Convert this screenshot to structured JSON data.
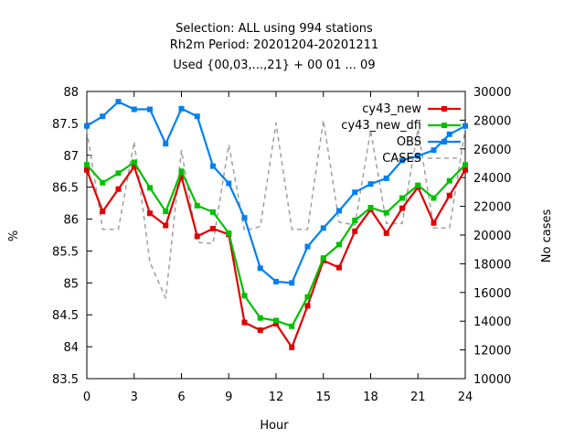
{
  "chart_data": {
    "type": "line",
    "title_lines": [
      "Selection: ALL using   994 stations",
      "Rh2m   Period: 20201204-20201211",
      "Used {00,03,...,21} + 00 01 ... 09"
    ],
    "xlabel": "Hour",
    "ylabel": "%",
    "y2label": "No cases",
    "xlim": [
      0,
      24
    ],
    "ylim": [
      83.5,
      88
    ],
    "y2lim": [
      10000,
      30000
    ],
    "x_ticks": [
      "0",
      "3",
      "6",
      "9",
      "12",
      "15",
      "18",
      "21",
      "24"
    ],
    "y_ticks": [
      "83.5",
      "84",
      "84.5",
      "85",
      "85.5",
      "86",
      "86.5",
      "87",
      "87.5",
      "88"
    ],
    "y2_ticks": [
      "10000",
      "12000",
      "14000",
      "16000",
      "18000",
      "20000",
      "22000",
      "24000",
      "26000",
      "28000",
      "30000"
    ],
    "grid": false,
    "legend_position": "top-right",
    "x": [
      0,
      1,
      2,
      3,
      4,
      5,
      6,
      7,
      8,
      9,
      10,
      11,
      12,
      13,
      14,
      15,
      16,
      17,
      18,
      19,
      20,
      21,
      22,
      23,
      24
    ],
    "series": [
      {
        "name": "cy43_new",
        "color": "#e00000",
        "marker": "square",
        "values": [
          86.77,
          86.12,
          86.47,
          86.82,
          86.09,
          85.9,
          86.67,
          85.73,
          85.85,
          85.76,
          84.38,
          84.26,
          84.36,
          83.99,
          84.64,
          85.35,
          85.24,
          85.81,
          86.15,
          85.78,
          86.17,
          86.5,
          85.94,
          86.37,
          86.77
        ]
      },
      {
        "name": "cy43_new_dfi",
        "color": "#00c000",
        "marker": "square",
        "values": [
          86.85,
          86.57,
          86.72,
          86.89,
          86.49,
          86.12,
          86.75,
          86.21,
          86.11,
          85.78,
          84.8,
          84.45,
          84.41,
          84.32,
          84.78,
          85.39,
          85.6,
          85.98,
          86.18,
          86.1,
          86.33,
          86.53,
          86.33,
          86.6,
          86.85
        ]
      },
      {
        "name": "OBS",
        "color": "#0080f0",
        "marker": "square",
        "values": [
          87.46,
          87.61,
          87.84,
          87.72,
          87.72,
          87.18,
          87.73,
          87.61,
          86.83,
          86.56,
          86.02,
          85.23,
          85.02,
          85.0,
          85.57,
          85.86,
          86.13,
          86.42,
          86.55,
          86.64,
          86.92,
          86.99,
          87.08,
          87.33,
          87.46
        ]
      },
      {
        "name": "CASES",
        "color": "#a0a0a0",
        "marker": "none",
        "dashed": true,
        "axis": "y2",
        "values": [
          27300,
          20400,
          20400,
          26500,
          18100,
          15600,
          25900,
          19500,
          19400,
          26300,
          20300,
          20600,
          27800,
          20400,
          20400,
          28000,
          20900,
          20700,
          27300,
          20800,
          20800,
          27400,
          20500,
          20500,
          27400
        ]
      }
    ]
  }
}
